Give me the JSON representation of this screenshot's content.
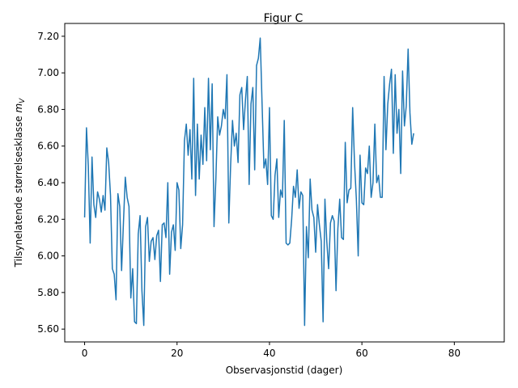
{
  "chart_data": {
    "type": "line",
    "title": "Figur C",
    "xlabel": "Observasjonstid (dager)",
    "ylabel_main": "Tilsynelatende størrelsesklasse ",
    "ylabel_symbol": "m",
    "ylabel_sub": "V",
    "xlim": [
      -4.3,
      90.8
    ],
    "ylim": [
      5.53,
      7.27
    ],
    "x_ticks": [
      0,
      20,
      40,
      60,
      80
    ],
    "x_tick_labels": [
      "0",
      "20",
      "40",
      "60",
      "80"
    ],
    "y_ticks": [
      5.6,
      5.8,
      6.0,
      6.2,
      6.4,
      6.6,
      6.8,
      7.0,
      7.2
    ],
    "y_tick_labels": [
      "5.60",
      "5.80",
      "6.00",
      "6.20",
      "6.40",
      "6.60",
      "6.80",
      "7.00",
      "7.20"
    ],
    "grid": false,
    "series": [
      {
        "color": "#1f77b4",
        "x_start": 0,
        "x_step": 0.4,
        "values": [
          6.21,
          6.7,
          6.49,
          6.07,
          6.54,
          6.28,
          6.21,
          6.35,
          6.31,
          6.24,
          6.33,
          6.25,
          6.59,
          6.51,
          6.33,
          5.93,
          5.9,
          5.76,
          6.34,
          6.27,
          5.92,
          6.18,
          6.43,
          6.32,
          6.27,
          5.77,
          5.93,
          5.64,
          5.63,
          6.12,
          6.22,
          5.81,
          5.62,
          6.16,
          6.21,
          5.97,
          6.08,
          6.1,
          5.98,
          6.11,
          6.14,
          5.86,
          6.17,
          6.18,
          6.1,
          6.4,
          5.9,
          6.13,
          6.17,
          6.03,
          6.4,
          6.36,
          6.04,
          6.17,
          6.63,
          6.72,
          6.55,
          6.69,
          6.42,
          6.97,
          6.33,
          6.72,
          6.42,
          6.66,
          6.5,
          6.81,
          6.52,
          6.97,
          6.58,
          6.94,
          6.16,
          6.42,
          6.76,
          6.66,
          6.71,
          6.8,
          6.75,
          6.99,
          6.18,
          6.5,
          6.74,
          6.6,
          6.67,
          6.51,
          6.88,
          6.92,
          6.69,
          6.85,
          6.98,
          6.39,
          6.83,
          6.92,
          6.47,
          7.04,
          7.08,
          7.19,
          6.83,
          6.48,
          6.53,
          6.39,
          6.81,
          6.22,
          6.2,
          6.44,
          6.53,
          6.21,
          6.36,
          6.32,
          6.74,
          6.07,
          6.06,
          6.07,
          6.2,
          6.38,
          6.32,
          6.47,
          6.26,
          6.35,
          6.33,
          5.62,
          6.16,
          5.99,
          6.42,
          6.25,
          6.21,
          6.02,
          6.28,
          6.17,
          6.08,
          5.64,
          6.31,
          6.08,
          5.93,
          6.18,
          6.22,
          6.19,
          5.81,
          6.15,
          6.31,
          6.1,
          6.09,
          6.62,
          6.29,
          6.36,
          6.37,
          6.81,
          6.51,
          6.31,
          6.0,
          6.55,
          6.29,
          6.28,
          6.48,
          6.45,
          6.6,
          6.32,
          6.4,
          6.72,
          6.4,
          6.44,
          6.32,
          6.32,
          6.98,
          6.58,
          6.83,
          6.94,
          7.02,
          6.56,
          6.99,
          6.67,
          6.8,
          6.45,
          7.01,
          6.71,
          6.82,
          7.13,
          6.78,
          6.61,
          6.67
        ]
      }
    ]
  }
}
